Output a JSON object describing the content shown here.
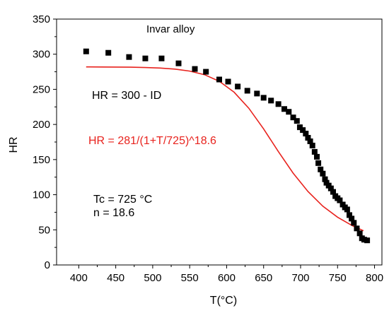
{
  "chart_data": {
    "type": "scatter",
    "title": "Invar alloy",
    "xlabel": "T(°C)",
    "ylabel": "HR",
    "xlim": [
      370,
      810
    ],
    "ylim": [
      0,
      350
    ],
    "x_ticks": [
      400,
      450,
      500,
      550,
      600,
      650,
      700,
      750,
      800
    ],
    "y_ticks": [
      0,
      50,
      100,
      150,
      200,
      250,
      300,
      350
    ],
    "grid": false,
    "colors": {
      "points": "#000000",
      "fit": "#e8231e"
    },
    "annotations": {
      "measured_formula": "HR = 300 - ID",
      "fit_formula": "HR = 281/(1+T/725)^18.6",
      "tc_label": "Tc = 725 °C",
      "n_label": "n = 18.6"
    },
    "series": [
      {
        "type": "scatter",
        "marker": "square",
        "x": [
          410,
          440,
          468,
          490,
          512,
          535,
          557,
          572,
          590,
          602,
          615,
          628,
          641,
          650,
          660,
          670,
          678,
          684,
          690,
          695,
          699,
          703,
          707,
          710,
          713,
          716,
          719,
          722,
          724,
          727,
          730,
          733,
          735,
          738,
          741,
          744,
          747,
          750,
          753,
          757,
          760,
          763,
          766,
          769,
          772,
          776,
          780,
          783,
          786,
          790
        ],
        "y": [
          304,
          302,
          296,
          294,
          294,
          287,
          279,
          275,
          264,
          261,
          254,
          248,
          244,
          238,
          234,
          229,
          222,
          218,
          210,
          205,
          196,
          192,
          187,
          181,
          176,
          170,
          161,
          154,
          145,
          136,
          130,
          122,
          117,
          113,
          109,
          104,
          98,
          95,
          92,
          86,
          82,
          79,
          71,
          66,
          60,
          52,
          45,
          38,
          36,
          35
        ]
      },
      {
        "type": "line",
        "x": [
          410,
          430,
          450,
          470,
          490,
          510,
          530,
          550,
          570,
          590,
          610,
          630,
          650,
          670,
          690,
          710,
          730,
          750,
          770,
          785
        ],
        "y": [
          281.9,
          281.8,
          281.7,
          281.5,
          281.0,
          280.3,
          278.8,
          276.0,
          270.8,
          261.5,
          246.0,
          223.1,
          193.7,
          161.3,
          130.6,
          104.5,
          83.7,
          68.0,
          55.9,
          48.7
        ]
      }
    ]
  }
}
